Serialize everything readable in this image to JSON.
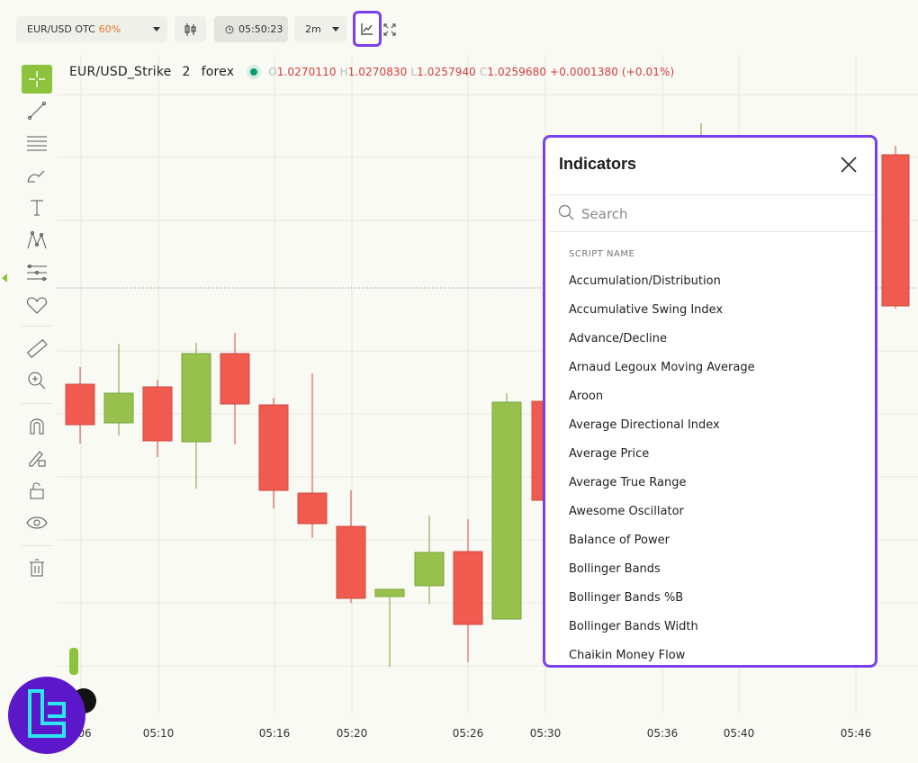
{
  "topbar": {
    "pair_label": "EUR/USD OTC",
    "payout": "60%",
    "timer": "05:50:23",
    "timeframe": "2m"
  },
  "legend": {
    "symbol": "EUR/USD_Strike",
    "interval": "2",
    "market": "forex",
    "o_key": "O",
    "o_val": "1.0270110",
    "h_key": "H",
    "h_val": "1.0270830",
    "l_key": "L",
    "l_val": "1.0257940",
    "c_key": "C",
    "c_val": "1.0259680",
    "change": "+0.0001380 (+0.01%)"
  },
  "xaxis": [
    "06",
    "05:10",
    "05:16",
    "05:20",
    "05:26",
    "05:30",
    "05:36",
    "05:40",
    "05:46"
  ],
  "indicators_panel": {
    "title": "Indicators",
    "search_placeholder": "Search",
    "column_header": "SCRIPT NAME",
    "items": [
      "Accumulation/Distribution",
      "Accumulative Swing Index",
      "Advance/Decline",
      "Arnaud Legoux Moving Average",
      "Aroon",
      "Average Directional Index",
      "Average Price",
      "Average True Range",
      "Awesome Oscillator",
      "Balance of Power",
      "Bollinger Bands",
      "Bollinger Bands %B",
      "Bollinger Bands Width",
      "Chaikin Money Flow"
    ]
  },
  "colors": {
    "bull": "#97c04d",
    "bear": "#f05a4f",
    "accent": "#7b3ff0",
    "background": "#f8faf3"
  },
  "icons": [
    "crosshair-icon",
    "trend-line-icon",
    "horizontal-lines-icon",
    "brush-icon",
    "text-icon",
    "pattern-icon",
    "fib-icon",
    "heart-icon",
    "ruler-icon",
    "zoom-in-icon",
    "magnet-icon",
    "lock-drawing-icon",
    "unlock-icon",
    "eye-icon",
    "trash-icon",
    "candles-settings-icon",
    "indicators-icon",
    "fullscreen-icon",
    "clock-icon",
    "close-icon",
    "search-icon"
  ]
}
